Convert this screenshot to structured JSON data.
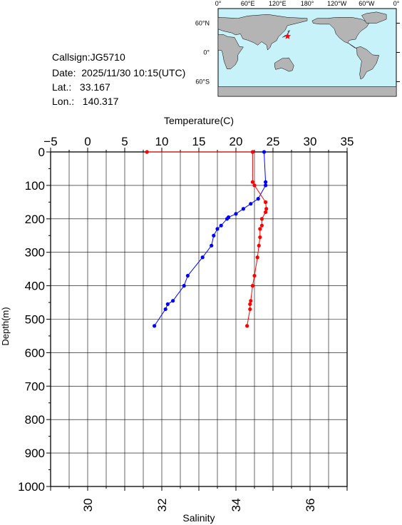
{
  "info": {
    "callsign": "Callsign:JG5710",
    "date": "Date:  2025/11/30 10:15(UTC)",
    "lat": "Lat.:   33.167",
    "lon": "Lon.:   140.317"
  },
  "map": {
    "top_ticks": [
      "0°",
      "60°E",
      "120°E",
      "180°",
      "120°W",
      "60°W",
      "0°"
    ],
    "lat_ticks": [
      "60°N",
      "0°",
      "60°S"
    ],
    "station": {
      "lon": 140.317,
      "lat": 33.167
    },
    "colors": {
      "ocean": "#c8f2fa",
      "land": "#b4b4b4",
      "marker": "#ff0000"
    }
  },
  "chart_data": {
    "type": "line",
    "ylabel": "Depth(m)",
    "y_ticks": [
      0,
      100,
      200,
      300,
      400,
      500,
      600,
      700,
      800,
      900,
      1000
    ],
    "ylim": [
      1000,
      0
    ],
    "top_axis": {
      "label": "Temperature(C)",
      "range": [
        -5,
        35
      ],
      "ticks": [
        -5,
        0,
        5,
        10,
        15,
        20,
        25,
        30,
        35
      ]
    },
    "bottom_axis": {
      "label": "Salinity",
      "range": [
        29,
        37
      ],
      "ticks": [
        30,
        32,
        34,
        36
      ]
    },
    "grid": true,
    "series": [
      {
        "axis": "temperature",
        "color": "#0000ff",
        "points": [
          {
            "x": 23.8,
            "depth": 0
          },
          {
            "x": 24.0,
            "depth": 90
          },
          {
            "x": 24.0,
            "depth": 100
          },
          {
            "x": 23.0,
            "depth": 140
          },
          {
            "x": 22.0,
            "depth": 155
          },
          {
            "x": 21.0,
            "depth": 170
          },
          {
            "x": 20.0,
            "depth": 185
          },
          {
            "x": 19.0,
            "depth": 195
          },
          {
            "x": 18.8,
            "depth": 200
          },
          {
            "x": 18.0,
            "depth": 220
          },
          {
            "x": 17.5,
            "depth": 230
          },
          {
            "x": 17.0,
            "depth": 250
          },
          {
            "x": 16.7,
            "depth": 280
          },
          {
            "x": 15.5,
            "depth": 315
          },
          {
            "x": 13.5,
            "depth": 370
          },
          {
            "x": 13.0,
            "depth": 400
          },
          {
            "x": 11.5,
            "depth": 445
          },
          {
            "x": 10.8,
            "depth": 455
          },
          {
            "x": 10.5,
            "depth": 470
          },
          {
            "x": 9.0,
            "depth": 520
          }
        ]
      },
      {
        "axis": "salinity",
        "color": "#ff0000",
        "points": [
          {
            "x": 31.6,
            "depth": 0
          },
          {
            "x": 34.45,
            "depth": 0
          },
          {
            "x": 34.45,
            "depth": 90
          },
          {
            "x": 34.5,
            "depth": 100
          },
          {
            "x": 34.8,
            "depth": 150
          },
          {
            "x": 34.82,
            "depth": 170
          },
          {
            "x": 34.8,
            "depth": 180
          },
          {
            "x": 34.7,
            "depth": 200
          },
          {
            "x": 34.7,
            "depth": 220
          },
          {
            "x": 34.65,
            "depth": 230
          },
          {
            "x": 34.65,
            "depth": 255
          },
          {
            "x": 34.62,
            "depth": 280
          },
          {
            "x": 34.58,
            "depth": 315
          },
          {
            "x": 34.5,
            "depth": 370
          },
          {
            "x": 34.45,
            "depth": 400
          },
          {
            "x": 34.4,
            "depth": 445
          },
          {
            "x": 34.38,
            "depth": 455
          },
          {
            "x": 34.38,
            "depth": 470
          },
          {
            "x": 34.3,
            "depth": 520
          }
        ]
      }
    ]
  }
}
